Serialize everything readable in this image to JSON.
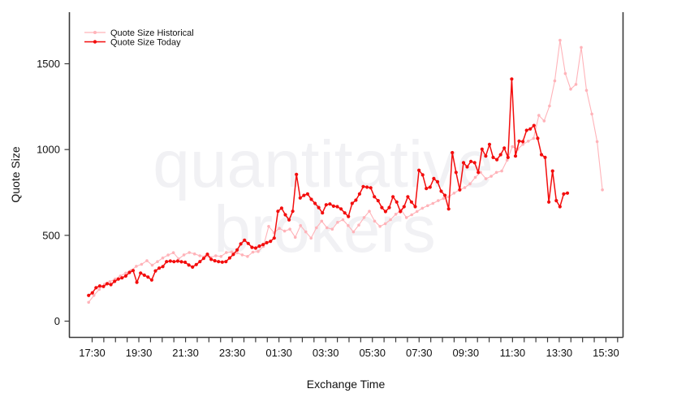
{
  "watermark": {
    "line1": "quantitative",
    "line2": "brokers",
    "color": "#f1f1f4"
  },
  "axes": {
    "x_label": "Exchange Time",
    "y_label": "Quote Size"
  },
  "styles": {
    "axis_color": "#3a3a3a",
    "text_color": "#111111",
    "background": "#ffffff"
  },
  "chart_data": {
    "type": "line",
    "title": "",
    "xlabel": "Exchange Time",
    "ylabel": "Quote Size",
    "grid": false,
    "legend_position": "top-left",
    "x_axis": {
      "tick_labels": [
        "17:30",
        "19:30",
        "21:30",
        "23:30",
        "01:30",
        "03:30",
        "05:30",
        "07:30",
        "09:30",
        "11:30",
        "13:30",
        "15:30"
      ],
      "label_every_hours": 2,
      "minor_tick_every_hours": 0.5,
      "minor_tick_count": 46
    },
    "y_axis": {
      "ticks": [
        0,
        500,
        1000,
        1500
      ],
      "range": [
        0,
        1800
      ]
    },
    "series": [
      {
        "name": "Quote Size Historical",
        "color": "#ffb3b9",
        "marker": "circle",
        "line_width": 1.1,
        "marker_radius": 1.8,
        "start_hour_offset": -0.15,
        "end_hour_offset": 21.85,
        "values": [
          110,
          150,
          185,
          215,
          230,
          245,
          263,
          280,
          295,
          320,
          331,
          352,
          326,
          347,
          368,
          385,
          399,
          363,
          386,
          400,
          392,
          381,
          377,
          372,
          381,
          377,
          400,
          403,
          398,
          386,
          377,
          402,
          406,
          436,
          552,
          516,
          541,
          525,
          536,
          489,
          557,
          520,
          484,
          544,
          583,
          544,
          536,
          576,
          591,
          557,
          520,
          560,
          604,
          640,
          583,
          552,
          568,
          591,
          623,
          647,
          604,
          620,
          639,
          658,
          673,
          686,
          702,
          715,
          725,
          746,
          765,
          778,
          800,
          838,
          867,
          830,
          844,
          867,
          875,
          938,
          1017,
          1002,
          1030,
          1049,
          1065,
          1199,
          1167,
          1254,
          1400,
          1637,
          1443,
          1352,
          1380,
          1595,
          1345,
          1207,
          1046,
          765
        ]
      },
      {
        "name": "Quote Size Today",
        "color": "#f30d0d",
        "marker": "circle",
        "line_width": 1.5,
        "marker_radius": 2.1,
        "start_hour_offset": -0.15,
        "end_hour_offset": 20.35,
        "values": [
          150,
          165,
          195,
          205,
          202,
          218,
          213,
          232,
          245,
          252,
          263,
          284,
          295,
          226,
          280,
          268,
          257,
          240,
          293,
          309,
          318,
          347,
          350,
          347,
          350,
          346,
          343,
          327,
          315,
          330,
          347,
          366,
          390,
          360,
          352,
          347,
          344,
          347,
          368,
          389,
          415,
          450,
          472,
          453,
          430,
          426,
          437,
          446,
          457,
          465,
          484,
          640,
          658,
          620,
          590,
          640,
          855,
          718,
          733,
          741,
          710,
          686,
          662,
          631,
          678,
          683,
          670,
          667,
          654,
          631,
          610,
          686,
          705,
          741,
          784,
          781,
          777,
          725,
          702,
          662,
          639,
          662,
          725,
          694,
          639,
          667,
          725,
          694,
          667,
          879,
          852,
          773,
          781,
          831,
          812,
          757,
          733,
          654,
          982,
          867,
          765,
          923,
          899,
          931,
          923,
          867,
          1002,
          962,
          1030,
          954,
          941,
          970,
          1009,
          954,
          1411,
          962,
          1049,
          1046,
          1112,
          1120,
          1140,
          1065,
          970,
          954,
          694,
          875,
          702,
          667,
          741,
          746
        ]
      }
    ]
  }
}
